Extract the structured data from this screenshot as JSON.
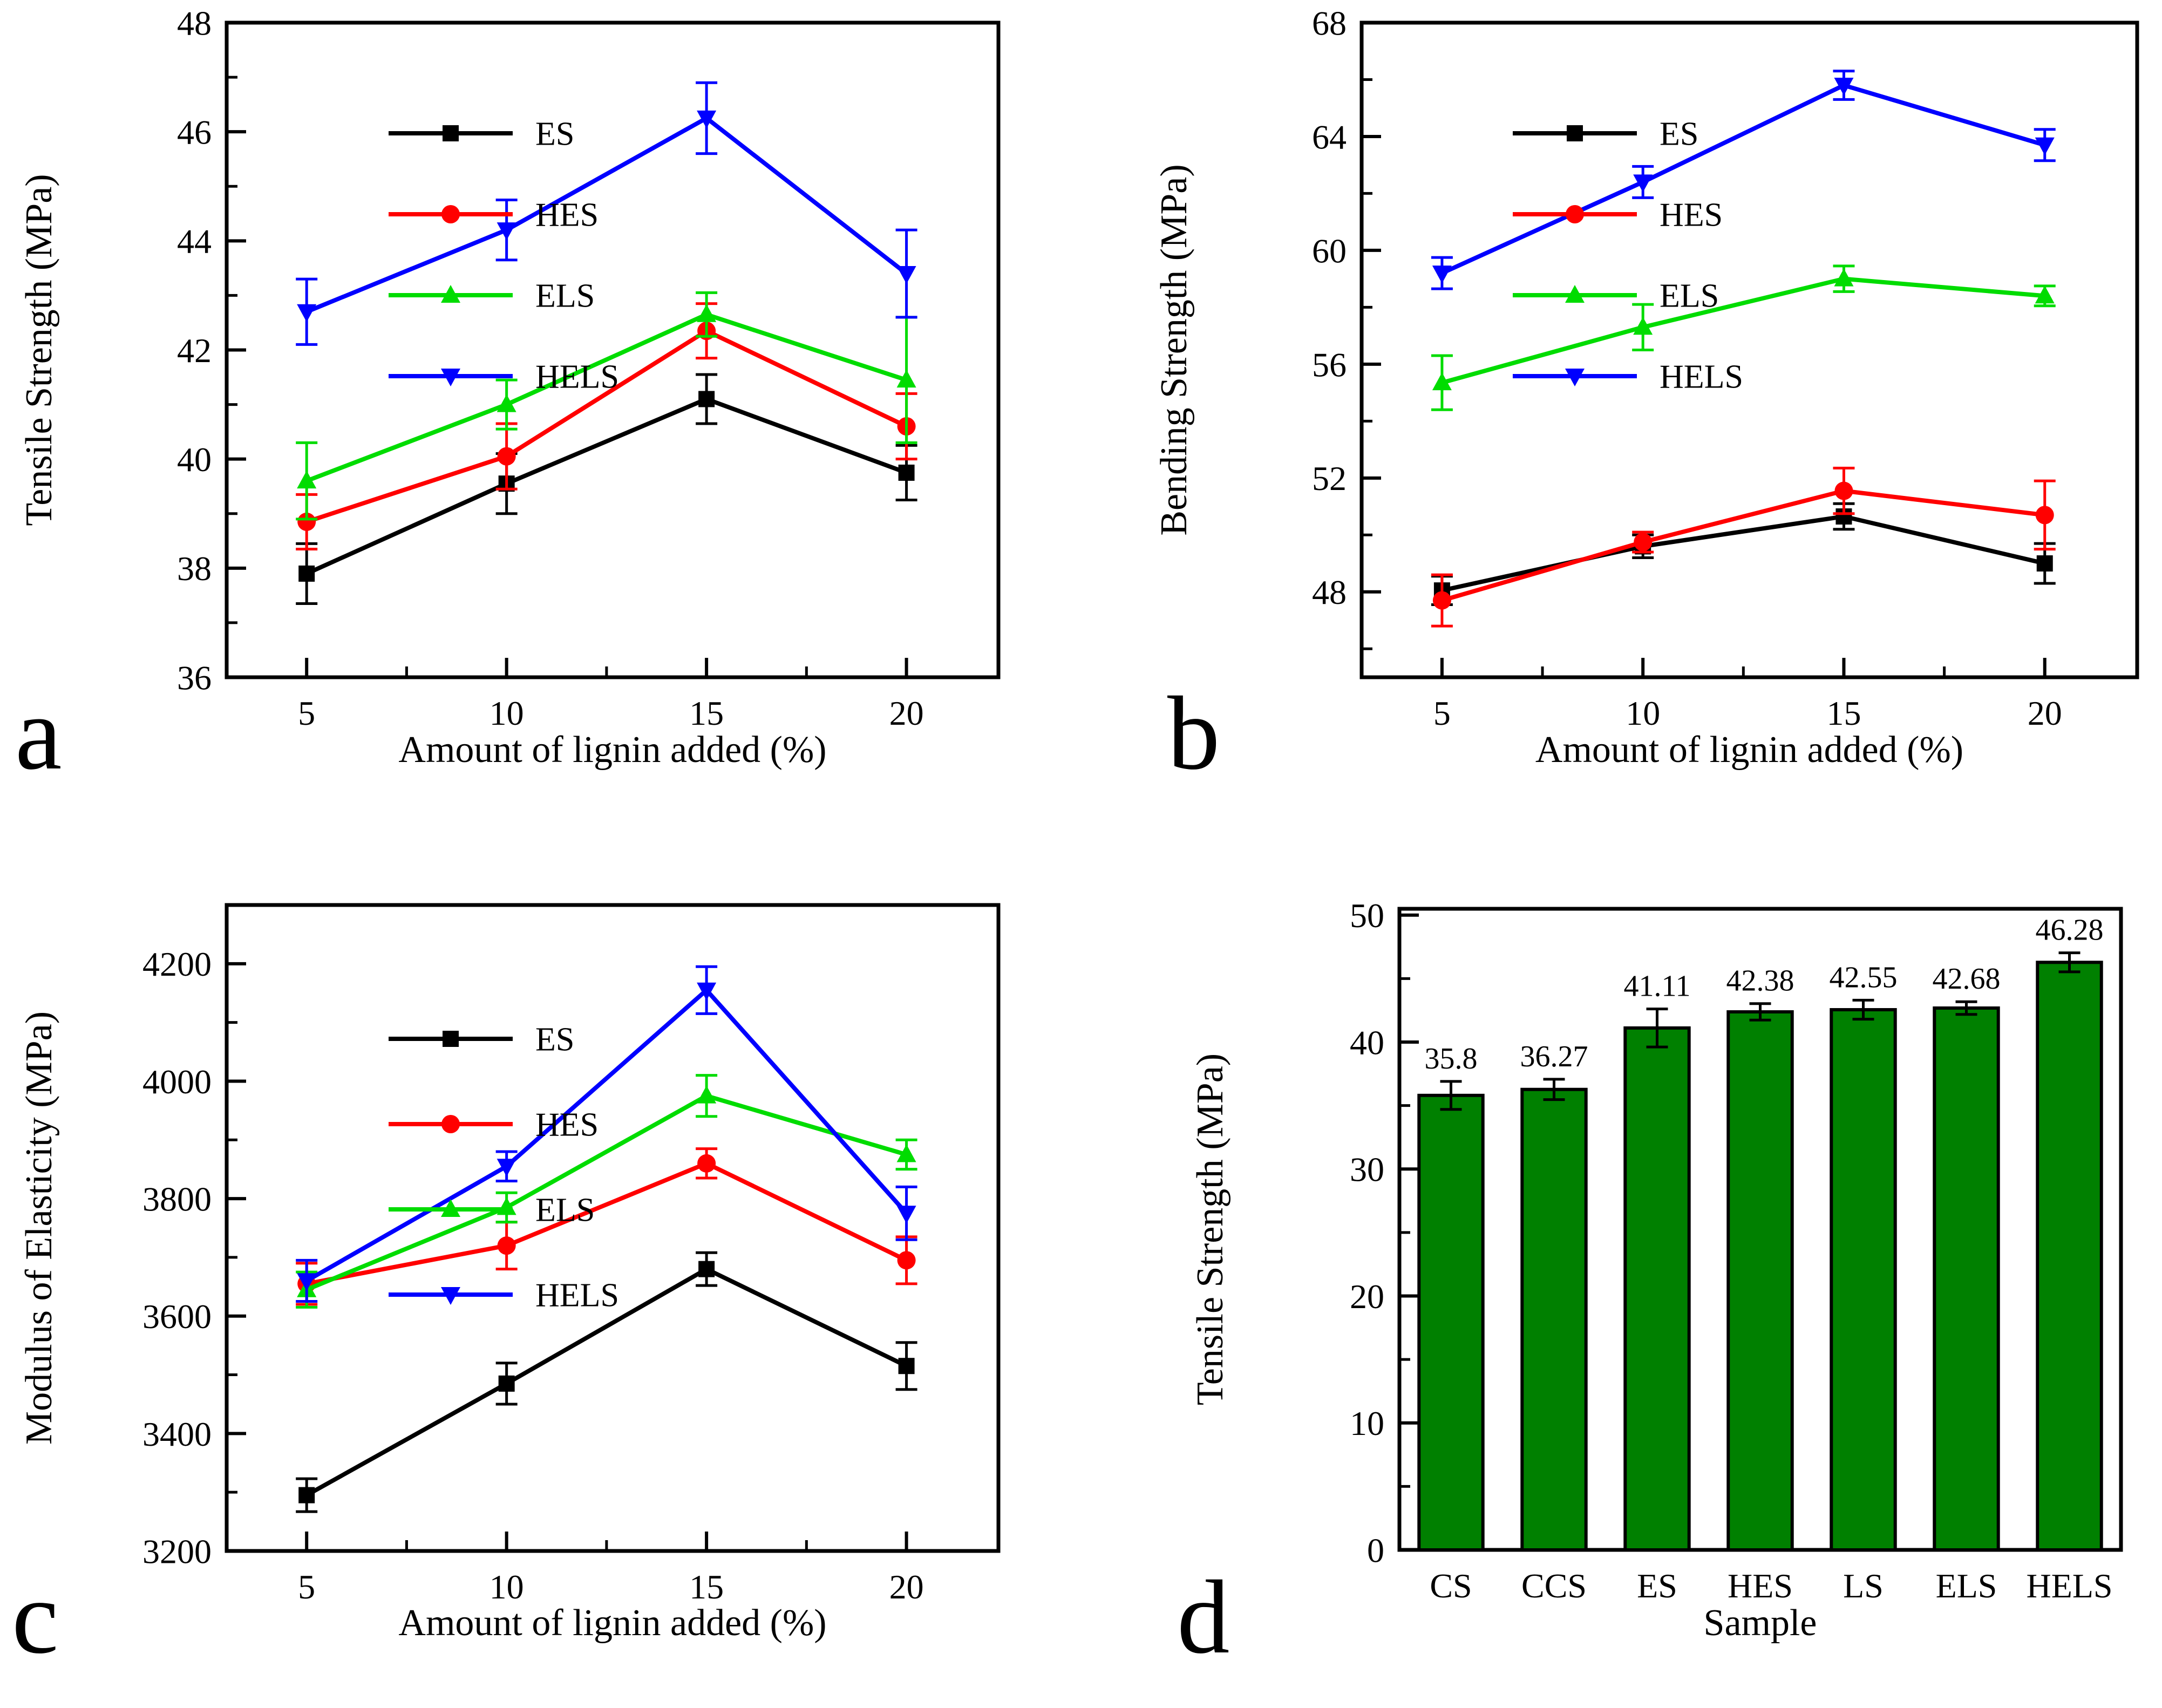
{
  "figure": {
    "background": "#ffffff",
    "panels": [
      {
        "letter": "a"
      },
      {
        "letter": "b"
      },
      {
        "letter": "c"
      },
      {
        "letter": "d"
      }
    ]
  },
  "colors": {
    "ES": "#000000",
    "HES": "#ff0000",
    "ELS": "#00dc00",
    "HELS": "#0000ff",
    "bar_fill": "#008000",
    "bar_edge": "#000000",
    "axis": "#000000"
  },
  "chart_data": [
    {
      "id": "a",
      "type": "line",
      "xlabel": "Amount of lignin added (%)",
      "ylabel": "Tensile Strength (MPa)",
      "x": [
        5,
        10,
        15,
        20
      ],
      "xticks": [
        5,
        10,
        15,
        20
      ],
      "xminor": [
        7.5,
        12.5,
        17.5
      ],
      "xlim": [
        3,
        22.3
      ],
      "ylim": [
        36,
        48
      ],
      "yticks": [
        36,
        38,
        40,
        42,
        44,
        46,
        48
      ],
      "yminor_step": 1,
      "legend": [
        "ES",
        "HES",
        "ELS",
        "HELS"
      ],
      "series": [
        {
          "name": "ES",
          "color": "#000000",
          "marker": "square",
          "values": [
            37.9,
            39.55,
            41.1,
            39.75
          ],
          "errors": [
            0.55,
            0.55,
            0.45,
            0.5
          ]
        },
        {
          "name": "HES",
          "color": "#ff0000",
          "marker": "circle",
          "values": [
            38.85,
            40.05,
            42.35,
            40.6
          ],
          "errors": [
            0.5,
            0.6,
            0.5,
            0.6
          ]
        },
        {
          "name": "ELS",
          "color": "#00dc00",
          "marker": "triangle-up",
          "values": [
            39.6,
            41.0,
            42.65,
            41.45
          ],
          "errors": [
            0.7,
            0.45,
            0.4,
            1.15
          ]
        },
        {
          "name": "HELS",
          "color": "#0000ff",
          "marker": "triangle-down",
          "values": [
            42.7,
            44.2,
            46.25,
            43.4
          ],
          "errors": [
            0.6,
            0.55,
            0.65,
            0.8
          ]
        }
      ]
    },
    {
      "id": "b",
      "type": "line",
      "xlabel": "Amount of lignin added (%)",
      "ylabel": "Bending Strength (MPa)",
      "x": [
        5,
        10,
        15,
        20
      ],
      "xticks": [
        5,
        10,
        15,
        20
      ],
      "xminor": [
        7.5,
        12.5,
        17.5
      ],
      "xlim": [
        3,
        22.3
      ],
      "ylim": [
        45,
        68
      ],
      "yticks": [
        48,
        52,
        56,
        60,
        64,
        68
      ],
      "yminor_step": 2,
      "legend": [
        "ES",
        "HES",
        "ELS",
        "HELS"
      ],
      "series": [
        {
          "name": "ES",
          "color": "#000000",
          "marker": "square",
          "values": [
            48.05,
            49.6,
            50.65,
            49.0
          ],
          "errors": [
            0.5,
            0.4,
            0.45,
            0.7
          ]
        },
        {
          "name": "HES",
          "color": "#ff0000",
          "marker": "circle",
          "values": [
            47.7,
            49.75,
            51.55,
            50.7
          ],
          "errors": [
            0.9,
            0.35,
            0.8,
            1.2
          ]
        },
        {
          "name": "ELS",
          "color": "#00dc00",
          "marker": "triangle-up",
          "values": [
            55.35,
            57.3,
            59.0,
            58.4
          ],
          "errors": [
            0.95,
            0.8,
            0.45,
            0.35
          ]
        },
        {
          "name": "HELS",
          "color": "#0000ff",
          "marker": "triangle-down",
          "values": [
            59.2,
            62.4,
            65.8,
            63.7
          ],
          "errors": [
            0.55,
            0.55,
            0.5,
            0.55
          ]
        }
      ]
    },
    {
      "id": "c",
      "type": "line",
      "xlabel": "Amount of lignin added (%)",
      "ylabel": "Modulus of Elasticity (MPa)",
      "x": [
        5,
        10,
        15,
        20
      ],
      "xticks": [
        5,
        10,
        15,
        20
      ],
      "xminor": [
        7.5,
        12.5,
        17.5
      ],
      "xlim": [
        3,
        22.3
      ],
      "ylim": [
        3200,
        4300
      ],
      "yticks": [
        3200,
        3400,
        3600,
        3800,
        4000,
        4200
      ],
      "yminor_step": 100,
      "legend": [
        "ES",
        "HES",
        "ELS",
        "HELS"
      ],
      "series": [
        {
          "name": "ES",
          "color": "#000000",
          "marker": "square",
          "values": [
            3295,
            3485,
            3680,
            3515
          ],
          "errors": [
            28,
            35,
            28,
            40
          ]
        },
        {
          "name": "HES",
          "color": "#ff0000",
          "marker": "circle",
          "values": [
            3655,
            3720,
            3860,
            3695
          ],
          "errors": [
            35,
            40,
            25,
            40
          ]
        },
        {
          "name": "ELS",
          "color": "#00dc00",
          "marker": "triangle-up",
          "values": [
            3645,
            3785,
            3975,
            3875
          ],
          "errors": [
            30,
            25,
            35,
            25
          ]
        },
        {
          "name": "HELS",
          "color": "#0000ff",
          "marker": "triangle-down",
          "values": [
            3660,
            3855,
            4155,
            3775
          ],
          "errors": [
            35,
            25,
            40,
            45
          ]
        }
      ]
    },
    {
      "id": "d",
      "type": "bar",
      "xlabel": "Sample",
      "ylabel": "Tensile Strength (MPa)",
      "categories": [
        "CS",
        "CCS",
        "ES",
        "HES",
        "LS",
        "ELS",
        "HELS"
      ],
      "values": [
        35.8,
        36.27,
        41.11,
        42.38,
        42.55,
        42.68,
        46.28
      ],
      "errors": [
        1.1,
        0.8,
        1.5,
        0.65,
        0.75,
        0.5,
        0.75
      ],
      "value_labels": [
        "35.8",
        "36.27",
        "41.11",
        "42.38",
        "42.55",
        "42.68",
        "46.28"
      ],
      "ylim": [
        0,
        50.5
      ],
      "yticks": [
        0,
        10,
        20,
        30,
        40,
        50
      ],
      "yminor_step": 5
    }
  ]
}
